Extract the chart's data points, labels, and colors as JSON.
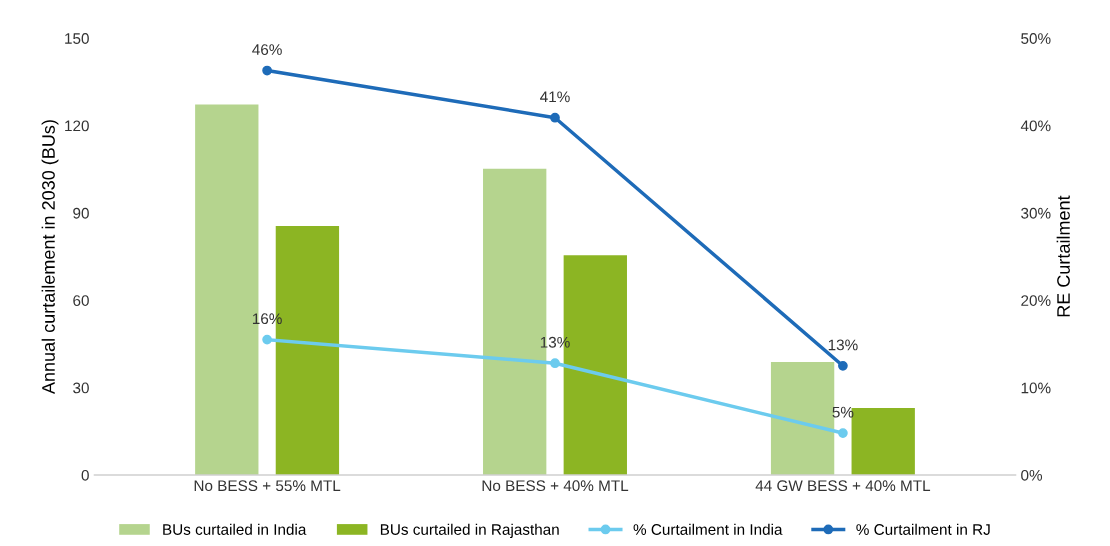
{
  "chart_data": {
    "type": "bar",
    "ylabel": "Annual curtailement in 2030 (BUs)",
    "y2label": "RE Curtailment",
    "categories": [
      "No BESS + 55% MTL",
      "No BESS + 40% MTL",
      "44 GW BESS + 40% MTL"
    ],
    "series": [
      {
        "name": "BUs curtailed in India",
        "color": "#b5d48e",
        "values": [
          127.2,
          105.2,
          38.8
        ]
      },
      {
        "name": "BUs curtailed in Rajasthan",
        "color": "#8cb523",
        "values": [
          85.5,
          75.5,
          23.0
        ]
      },
      {
        "name": "% Curtailment in India",
        "type": "line",
        "axis": "y2",
        "color": "#6ccbee",
        "marker": "circle",
        "values": [
          15.5,
          12.8,
          4.8
        ],
        "value_labels": [
          "16%",
          "13%",
          "5%"
        ]
      },
      {
        "name": "% Curtailment in RJ",
        "type": "line",
        "axis": "y2",
        "color": "#1e6bb8",
        "marker": "circle",
        "values": [
          46.3,
          40.9,
          12.5
        ],
        "value_labels": [
          "46%",
          "41%",
          "13%"
        ]
      }
    ],
    "ylim": [
      0,
      150
    ],
    "yticks": [
      0,
      30,
      60,
      90,
      120,
      150
    ],
    "y2lim": [
      0,
      50
    ],
    "y2ticks": [
      {
        "value": 0,
        "label": "0%"
      },
      {
        "value": 10,
        "label": "10%"
      },
      {
        "value": 20,
        "label": "20%"
      },
      {
        "value": 30,
        "label": "30%"
      },
      {
        "value": 40,
        "label": "40%"
      },
      {
        "value": 50,
        "label": "50%"
      }
    ],
    "grid": false,
    "legend": "bottom"
  }
}
